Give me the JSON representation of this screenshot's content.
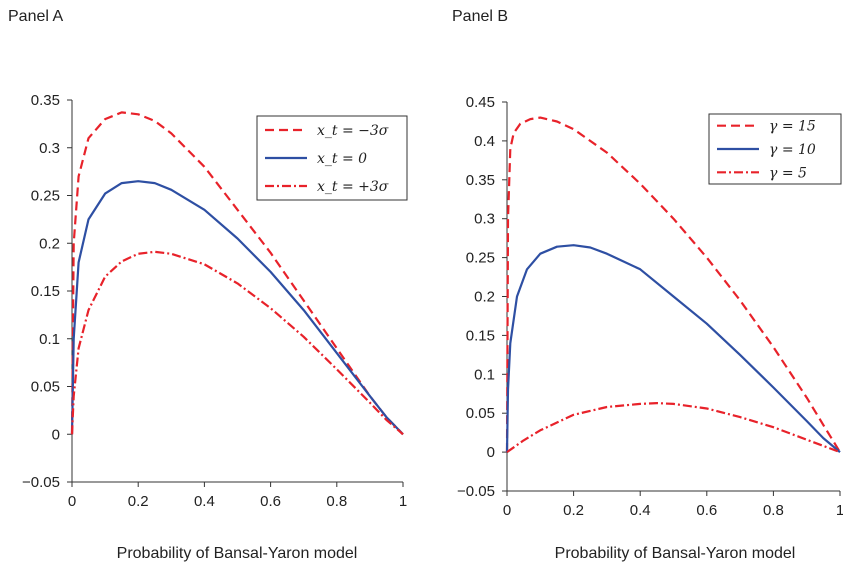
{
  "chart_data": [
    {
      "type": "line",
      "panel_title": "Panel A",
      "xlabel": "Probability of Bansal-Yaron model",
      "ylabel": "",
      "xlim": [
        0,
        1
      ],
      "ylim": [
        -0.05,
        0.35
      ],
      "xticks": [
        0,
        0.2,
        0.4,
        0.6,
        0.8,
        1
      ],
      "xtick_labels": [
        "0",
        "0.2",
        "0.4",
        "0.6",
        "0.8",
        "1"
      ],
      "yticks": [
        -0.05,
        0,
        0.05,
        0.1,
        0.15,
        0.2,
        0.25,
        0.3,
        0.35
      ],
      "ytick_labels": [
        "−0.05",
        "0",
        "0.05",
        "0.1",
        "0.15",
        "0.2",
        "0.25",
        "0.3",
        "0.35"
      ],
      "legend_position": "top-right",
      "series": [
        {
          "name": "x_t = −3σ",
          "color": "#e8222a",
          "dash": "dashed",
          "x": [
            0,
            0.005,
            0.02,
            0.05,
            0.1,
            0.15,
            0.2,
            0.25,
            0.3,
            0.4,
            0.5,
            0.6,
            0.7,
            0.8,
            0.9,
            0.95,
            1.0
          ],
          "y": [
            0,
            0.2,
            0.27,
            0.31,
            0.33,
            0.337,
            0.335,
            0.328,
            0.315,
            0.28,
            0.235,
            0.19,
            0.14,
            0.09,
            0.04,
            0.018,
            0
          ]
        },
        {
          "name": "x_t = 0",
          "color": "#2e4fa3",
          "dash": "solid",
          "x": [
            0,
            0.005,
            0.02,
            0.05,
            0.1,
            0.15,
            0.2,
            0.25,
            0.3,
            0.4,
            0.5,
            0.6,
            0.7,
            0.8,
            0.9,
            0.95,
            1.0
          ],
          "y": [
            0,
            0.1,
            0.18,
            0.225,
            0.252,
            0.263,
            0.265,
            0.263,
            0.256,
            0.235,
            0.205,
            0.17,
            0.13,
            0.085,
            0.04,
            0.018,
            0
          ]
        },
        {
          "name": "x_t = +3σ",
          "color": "#e8222a",
          "dash": "dashdot",
          "x": [
            0,
            0.005,
            0.02,
            0.05,
            0.1,
            0.15,
            0.2,
            0.25,
            0.3,
            0.4,
            0.5,
            0.6,
            0.7,
            0.8,
            0.9,
            0.95,
            1.0
          ],
          "y": [
            0,
            0.04,
            0.09,
            0.13,
            0.165,
            0.181,
            0.189,
            0.191,
            0.189,
            0.178,
            0.158,
            0.132,
            0.102,
            0.068,
            0.033,
            0.015,
            0
          ]
        }
      ]
    },
    {
      "type": "line",
      "panel_title": "Panel B",
      "xlabel": "Probability of Bansal-Yaron model",
      "ylabel": "",
      "xlim": [
        0,
        1
      ],
      "ylim": [
        -0.05,
        0.45
      ],
      "xticks": [
        0,
        0.2,
        0.4,
        0.6,
        0.8,
        1
      ],
      "xtick_labels": [
        "0",
        "0.2",
        "0.4",
        "0.6",
        "0.8",
        "1"
      ],
      "yticks": [
        -0.05,
        0,
        0.05,
        0.1,
        0.15,
        0.2,
        0.25,
        0.3,
        0.35,
        0.4,
        0.45
      ],
      "ytick_labels": [
        "−0.05",
        "0",
        "0.05",
        "0.1",
        "0.15",
        "0.2",
        "0.25",
        "0.3",
        "0.35",
        "0.4",
        "0.45"
      ],
      "legend_position": "top-right",
      "series": [
        {
          "name": "γ = 15",
          "color": "#e8222a",
          "dash": "dashed",
          "x": [
            0,
            0.003,
            0.01,
            0.02,
            0.04,
            0.07,
            0.1,
            0.15,
            0.2,
            0.3,
            0.4,
            0.5,
            0.6,
            0.7,
            0.8,
            0.9,
            0.95,
            1.0
          ],
          "y": [
            0,
            0.3,
            0.39,
            0.41,
            0.422,
            0.428,
            0.43,
            0.425,
            0.415,
            0.385,
            0.345,
            0.3,
            0.25,
            0.195,
            0.135,
            0.07,
            0.035,
            0
          ]
        },
        {
          "name": "γ = 10",
          "color": "#2e4fa3",
          "dash": "solid",
          "x": [
            0,
            0.003,
            0.01,
            0.03,
            0.06,
            0.1,
            0.15,
            0.2,
            0.25,
            0.3,
            0.4,
            0.5,
            0.6,
            0.7,
            0.8,
            0.9,
            0.95,
            1.0
          ],
          "y": [
            0,
            0.08,
            0.14,
            0.2,
            0.235,
            0.255,
            0.264,
            0.266,
            0.263,
            0.255,
            0.235,
            0.2,
            0.165,
            0.125,
            0.083,
            0.04,
            0.018,
            0
          ]
        },
        {
          "name": "γ = 5",
          "color": "#e8222a",
          "dash": "dashdot",
          "x": [
            0,
            0.05,
            0.1,
            0.2,
            0.3,
            0.4,
            0.45,
            0.5,
            0.6,
            0.7,
            0.8,
            0.9,
            1.0
          ],
          "y": [
            0,
            0.015,
            0.028,
            0.048,
            0.058,
            0.062,
            0.063,
            0.062,
            0.056,
            0.045,
            0.032,
            0.016,
            0
          ]
        }
      ]
    }
  ]
}
